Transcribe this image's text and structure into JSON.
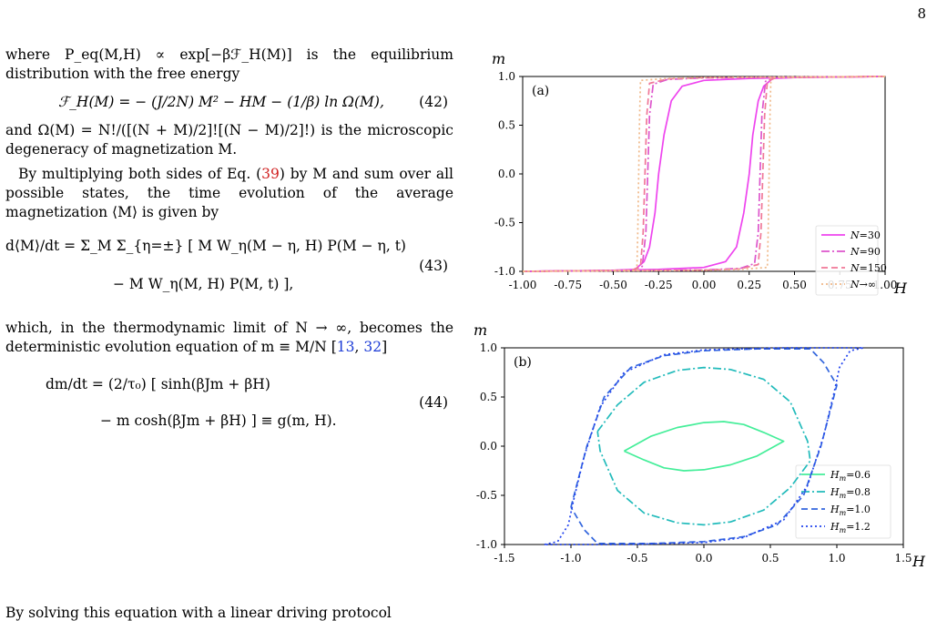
{
  "page_number": "8",
  "text": {
    "p1": "where P_eq(M,H) ∝ exp[−βℱ_H(M)] is the equilibrium distribution with the free energy",
    "eq42": "ℱ_H(M) = − (J/2N) M² − HM − (1/β) ln Ω(M),",
    "eq42_num": "(42)",
    "p2": "and Ω(M) = N!/([(N + M)/2]![(N − M)/2]!) is the microscopic degeneracy of magnetization M.",
    "p3a": "By multiplying both sides of Eq. (",
    "p3ref": "39",
    "p3b": ") by M and sum over all possible states, the time evolution of the average magnetization ⟨M⟩ is given by",
    "eq43_line1": "d⟨M⟩/dt = Σ_M Σ_{η=±} [ M W_η(M − η, H) P(M − η, t)",
    "eq43_line2": "− M W_η(M, H) P(M, t) ],",
    "eq43_num": "(43)",
    "p4a": "which, in the thermodynamic limit of N → ∞, becomes the deterministic evolution equation of m ≡ M/N [",
    "p4cite1": "13",
    "p4mid": ", ",
    "p4cite2": "32",
    "p4b": "]",
    "eq44_line1": "dm/dt = (2/τ₀) [ sinh(βJm + βH)",
    "eq44_line2": "− m cosh(βJm + βH) ] ≡ g(m, H).",
    "eq44_num": "(44)",
    "p5": "By solving this equation with a linear driving protocol"
  },
  "chart_data": [
    {
      "type": "line",
      "panel_label": "(a)",
      "xlabel": "H",
      "ylabel": "m",
      "xlim": [
        -1.0,
        1.0
      ],
      "ylim": [
        -1.0,
        1.0
      ],
      "xticks": [
        "-1.00",
        "-0.75",
        "-0.50",
        "-0.25",
        "0.00",
        "0.25",
        "0.50",
        "0.75",
        "1.00"
      ],
      "xtick_values": [
        -1.0,
        -0.75,
        -0.5,
        -0.25,
        0.0,
        0.25,
        0.5,
        0.75,
        1.0
      ],
      "yticks": [
        "-1.0",
        "-0.5",
        "0.0",
        "0.5",
        "1.0"
      ],
      "ytick_values": [
        -1.0,
        -0.5,
        0.0,
        0.5,
        1.0
      ],
      "legend_position": "bottom-right",
      "series": [
        {
          "name": "N=30",
          "color": "#ee44ee",
          "dash": "solid",
          "lower_branch": [
            [
              -1.0,
              -1.0
            ],
            [
              -0.5,
              -0.99
            ],
            [
              -0.38,
              -0.98
            ],
            [
              -0.33,
              -0.9
            ],
            [
              -0.3,
              -0.75
            ],
            [
              -0.27,
              -0.4
            ],
            [
              -0.25,
              0.0
            ],
            [
              -0.22,
              0.4
            ],
            [
              -0.18,
              0.75
            ],
            [
              -0.12,
              0.9
            ],
            [
              0.0,
              0.96
            ],
            [
              0.25,
              0.98
            ],
            [
              0.5,
              0.99
            ],
            [
              1.0,
              1.0
            ]
          ],
          "upper_branch": [
            [
              1.0,
              1.0
            ],
            [
              0.5,
              0.99
            ],
            [
              0.38,
              0.98
            ],
            [
              0.33,
              0.9
            ],
            [
              0.3,
              0.75
            ],
            [
              0.27,
              0.4
            ],
            [
              0.25,
              0.0
            ],
            [
              0.22,
              -0.4
            ],
            [
              0.18,
              -0.75
            ],
            [
              0.12,
              -0.9
            ],
            [
              0.0,
              -0.96
            ],
            [
              -0.25,
              -0.98
            ],
            [
              -0.5,
              -0.99
            ],
            [
              -1.0,
              -1.0
            ]
          ]
        },
        {
          "name": "N=90",
          "color": "#dd55cc",
          "dash": "dashdot",
          "lower_branch": [
            [
              -1.0,
              -1.0
            ],
            [
              -0.4,
              -0.99
            ],
            [
              -0.34,
              -0.95
            ],
            [
              -0.32,
              -0.6
            ],
            [
              -0.31,
              0.0
            ],
            [
              -0.3,
              0.6
            ],
            [
              -0.28,
              0.92
            ],
            [
              -0.2,
              0.97
            ],
            [
              0.0,
              0.985
            ],
            [
              1.0,
              1.0
            ]
          ],
          "upper_branch": [
            [
              1.0,
              1.0
            ],
            [
              0.4,
              0.99
            ],
            [
              0.34,
              0.95
            ],
            [
              0.32,
              0.6
            ],
            [
              0.31,
              0.0
            ],
            [
              0.3,
              -0.6
            ],
            [
              0.28,
              -0.92
            ],
            [
              0.2,
              -0.97
            ],
            [
              0.0,
              -0.985
            ],
            [
              -1.0,
              -1.0
            ]
          ]
        },
        {
          "name": "N=150",
          "color": "#f07898",
          "dash": "dashed",
          "lower_branch": [
            [
              -1.0,
              -1.0
            ],
            [
              -0.4,
              -0.99
            ],
            [
              -0.35,
              -0.95
            ],
            [
              -0.335,
              -0.6
            ],
            [
              -0.325,
              0.0
            ],
            [
              -0.315,
              0.6
            ],
            [
              -0.3,
              0.93
            ],
            [
              -0.2,
              0.975
            ],
            [
              0.0,
              0.988
            ],
            [
              1.0,
              1.0
            ]
          ],
          "upper_branch": [
            [
              1.0,
              1.0
            ],
            [
              0.4,
              0.99
            ],
            [
              0.35,
              0.95
            ],
            [
              0.335,
              0.6
            ],
            [
              0.325,
              0.0
            ],
            [
              0.315,
              -0.6
            ],
            [
              0.3,
              -0.93
            ],
            [
              0.2,
              -0.975
            ],
            [
              0.0,
              -0.988
            ],
            [
              -1.0,
              -1.0
            ]
          ]
        },
        {
          "name": "N→∞",
          "color": "#f0b888",
          "dash": "dotted",
          "lower_branch": [
            [
              -1.0,
              -1.0
            ],
            [
              -0.37,
              -0.99
            ],
            [
              -0.365,
              -0.6
            ],
            [
              -0.36,
              0.0
            ],
            [
              -0.355,
              0.6
            ],
            [
              -0.35,
              0.96
            ],
            [
              -0.2,
              0.98
            ],
            [
              0.0,
              0.99
            ],
            [
              1.0,
              1.0
            ]
          ],
          "upper_branch": [
            [
              1.0,
              1.0
            ],
            [
              0.37,
              0.99
            ],
            [
              0.365,
              0.6
            ],
            [
              0.36,
              0.0
            ],
            [
              0.355,
              -0.6
            ],
            [
              0.35,
              -0.96
            ],
            [
              0.2,
              -0.98
            ],
            [
              0.0,
              -0.99
            ],
            [
              -1.0,
              -1.0
            ]
          ]
        }
      ]
    },
    {
      "type": "line",
      "panel_label": "(b)",
      "xlabel": "H",
      "ylabel": "m",
      "xlim": [
        -1.5,
        1.5
      ],
      "ylim": [
        -1.0,
        1.0
      ],
      "xticks": [
        "-1.5",
        "-1.0",
        "-0.5",
        "0.0",
        "0.5",
        "1.0",
        "1.5"
      ],
      "xtick_values": [
        -1.5,
        -1.0,
        -0.5,
        0.0,
        0.5,
        1.0,
        1.5
      ],
      "yticks": [
        "-1.0",
        "-0.5",
        "0.0",
        "0.5",
        "1.0"
      ],
      "ytick_values": [
        -1.0,
        -0.5,
        0.0,
        0.5,
        1.0
      ],
      "legend_position": "center-right",
      "series": [
        {
          "name": "H_m=0.6",
          "label_main": "H",
          "label_sub": "m",
          "label_val": "=0.6",
          "color": "#44ee99",
          "dash": "solid",
          "points": [
            [
              -0.6,
              -0.05
            ],
            [
              -0.4,
              0.1
            ],
            [
              -0.2,
              0.19
            ],
            [
              0.0,
              0.24
            ],
            [
              0.15,
              0.25
            ],
            [
              0.3,
              0.22
            ],
            [
              0.45,
              0.14
            ],
            [
              0.6,
              0.05
            ],
            [
              0.4,
              -0.1
            ],
            [
              0.2,
              -0.19
            ],
            [
              0.0,
              -0.24
            ],
            [
              -0.15,
              -0.25
            ],
            [
              -0.3,
              -0.22
            ],
            [
              -0.45,
              -0.14
            ],
            [
              -0.6,
              -0.05
            ]
          ]
        },
        {
          "name": "H_m=0.8",
          "label_main": "H",
          "label_sub": "m",
          "label_val": "=0.8",
          "color": "#22bbbb",
          "dash": "dashdot",
          "points": [
            [
              -0.8,
              0.15
            ],
            [
              -0.65,
              0.42
            ],
            [
              -0.45,
              0.65
            ],
            [
              -0.2,
              0.77
            ],
            [
              0.0,
              0.8
            ],
            [
              0.2,
              0.78
            ],
            [
              0.45,
              0.68
            ],
            [
              0.65,
              0.45
            ],
            [
              0.78,
              0.05
            ],
            [
              0.8,
              -0.15
            ],
            [
              0.65,
              -0.42
            ],
            [
              0.45,
              -0.65
            ],
            [
              0.2,
              -0.77
            ],
            [
              0.0,
              -0.8
            ],
            [
              -0.2,
              -0.78
            ],
            [
              -0.45,
              -0.68
            ],
            [
              -0.65,
              -0.45
            ],
            [
              -0.78,
              -0.05
            ],
            [
              -0.8,
              0.15
            ]
          ]
        },
        {
          "name": "H_m=1.0",
          "label_main": "H",
          "label_sub": "m",
          "label_val": "=1.0",
          "color": "#3366dd",
          "dash": "dashed",
          "points": [
            [
              -1.0,
              -0.62
            ],
            [
              -0.88,
              0.0
            ],
            [
              -0.75,
              0.5
            ],
            [
              -0.55,
              0.8
            ],
            [
              -0.3,
              0.92
            ],
            [
              0.0,
              0.97
            ],
            [
              0.4,
              0.99
            ],
            [
              0.8,
              0.99
            ],
            [
              0.9,
              0.85
            ],
            [
              1.0,
              0.62
            ],
            [
              0.88,
              0.0
            ],
            [
              0.75,
              -0.5
            ],
            [
              0.55,
              -0.8
            ],
            [
              0.3,
              -0.92
            ],
            [
              0.0,
              -0.97
            ],
            [
              -0.4,
              -0.99
            ],
            [
              -0.8,
              -0.99
            ],
            [
              -0.9,
              -0.85
            ],
            [
              -1.0,
              -0.62
            ]
          ]
        },
        {
          "name": "H_m=1.2",
          "label_main": "H",
          "label_sub": "m",
          "label_val": "=1.2",
          "color": "#2244ee",
          "dash": "dotted",
          "points": [
            [
              -1.2,
              -1.0
            ],
            [
              -1.1,
              -0.97
            ],
            [
              -1.02,
              -0.8
            ],
            [
              -0.98,
              -0.55
            ],
            [
              -0.9,
              -0.1
            ],
            [
              -0.78,
              0.4
            ],
            [
              -0.6,
              0.75
            ],
            [
              -0.3,
              0.93
            ],
            [
              0.0,
              0.98
            ],
            [
              0.6,
              1.0
            ],
            [
              1.0,
              1.0
            ],
            [
              1.2,
              1.0
            ],
            [
              1.1,
              0.97
            ],
            [
              1.02,
              0.8
            ],
            [
              0.98,
              0.55
            ],
            [
              0.9,
              0.1
            ],
            [
              0.78,
              -0.4
            ],
            [
              0.6,
              -0.75
            ],
            [
              0.3,
              -0.93
            ],
            [
              0.0,
              -0.98
            ],
            [
              -0.6,
              -1.0
            ],
            [
              -1.0,
              -1.0
            ],
            [
              -1.2,
              -1.0
            ]
          ]
        }
      ]
    }
  ]
}
